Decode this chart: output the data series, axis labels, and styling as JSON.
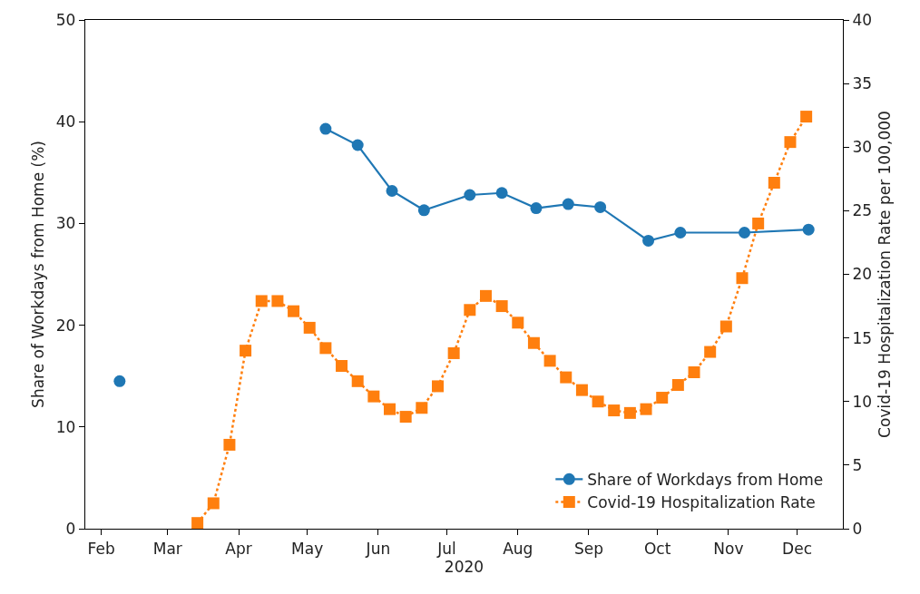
{
  "chart_data": {
    "type": "line",
    "xlabel": "2020",
    "ylabel": "Share of Workdays from Home (%)",
    "y2label": "Covid-19 Hospitalization Rate per 100,000",
    "series": [
      {
        "name": "Share of Workdays from Home",
        "color": "#1f77b4",
        "marker": "circle",
        "line_style": "solid",
        "x": [
          "2020-02-09",
          "2020-03-25",
          "2020-05-09",
          "2020-05-23",
          "2020-06-07",
          "2020-06-21",
          "2020-07-11",
          "2020-07-25",
          "2020-08-09",
          "2020-08-23",
          "2020-09-06",
          "2020-09-27",
          "2020-10-11",
          "2020-11-08",
          "2020-12-06"
        ],
        "values": [
          14.5,
          null,
          39.3,
          37.7,
          33.2,
          31.3,
          32.8,
          33.0,
          31.5,
          31.9,
          31.6,
          28.3,
          29.1,
          29.1,
          29.4
        ]
      },
      {
        "name": "Covid-19 Hospitalization Rate",
        "color": "#ff7f0e",
        "marker": "square",
        "line_style": "dotted",
        "axis": "y2",
        "x": [
          "2020-03-14",
          "2020-03-21",
          "2020-03-28",
          "2020-04-04",
          "2020-04-11",
          "2020-04-18",
          "2020-04-25",
          "2020-05-02",
          "2020-05-09",
          "2020-05-16",
          "2020-05-23",
          "2020-05-30",
          "2020-06-06",
          "2020-06-13",
          "2020-06-20",
          "2020-06-27",
          "2020-07-04",
          "2020-07-11",
          "2020-07-18",
          "2020-07-25",
          "2020-08-01",
          "2020-08-08",
          "2020-08-15",
          "2020-08-22",
          "2020-08-29",
          "2020-09-05",
          "2020-09-12",
          "2020-09-19",
          "2020-09-26",
          "2020-10-03",
          "2020-10-10",
          "2020-10-17",
          "2020-10-24",
          "2020-10-31",
          "2020-11-07",
          "2020-11-14",
          "2020-11-21",
          "2020-11-28",
          "2020-12-05"
        ],
        "values": [
          0.45,
          2.0,
          6.6,
          14.0,
          17.9,
          17.9,
          17.1,
          15.8,
          14.2,
          12.8,
          11.6,
          10.4,
          9.4,
          8.8,
          9.5,
          11.2,
          13.8,
          17.2,
          18.3,
          17.5,
          16.2,
          14.6,
          13.2,
          11.9,
          10.9,
          10.0,
          9.3,
          9.1,
          9.4,
          10.3,
          11.3,
          12.3,
          13.9,
          15.9,
          19.7,
          24.0,
          27.2,
          30.4,
          32.4
        ]
      }
    ],
    "xlim": [
      "2020-01-25",
      "2020-12-21"
    ],
    "xticks": [
      {
        "value": "2020-02-01",
        "label": "Feb"
      },
      {
        "value": "2020-03-01",
        "label": "Mar"
      },
      {
        "value": "2020-04-01",
        "label": "Apr"
      },
      {
        "value": "2020-05-01",
        "label": "May"
      },
      {
        "value": "2020-06-01",
        "label": "Jun"
      },
      {
        "value": "2020-07-01",
        "label": "Jul"
      },
      {
        "value": "2020-08-01",
        "label": "Aug"
      },
      {
        "value": "2020-09-01",
        "label": "Sep"
      },
      {
        "value": "2020-10-01",
        "label": "Oct"
      },
      {
        "value": "2020-11-01",
        "label": "Nov"
      },
      {
        "value": "2020-12-01",
        "label": "Dec"
      }
    ],
    "ylim": [
      0,
      50
    ],
    "yticks": [
      0,
      10,
      20,
      30,
      40,
      50
    ],
    "y2lim": [
      0,
      40
    ],
    "y2ticks": [
      0,
      5,
      10,
      15,
      20,
      25,
      30,
      35,
      40
    ],
    "grid": false,
    "legend": "bottom right"
  }
}
